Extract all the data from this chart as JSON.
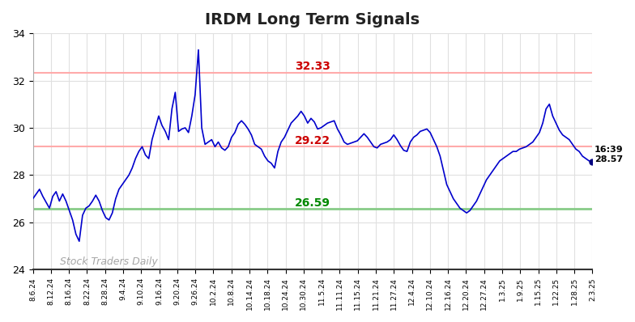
{
  "title": "IRDM Long Term Signals",
  "xlim_dates": [
    "8.6.24",
    "2.3.25"
  ],
  "ylim": [
    24,
    34
  ],
  "yticks": [
    24,
    26,
    28,
    30,
    32,
    34
  ],
  "upper_line": 32.33,
  "lower_line": 26.59,
  "mid_line": 29.22,
  "upper_line_color": "#ffaaaa",
  "lower_line_color": "#88cc88",
  "mid_line_color": "#ffaaaa",
  "upper_label": "32.33",
  "lower_label": "26.59",
  "mid_label": "29.22",
  "upper_label_color": "#cc0000",
  "lower_label_color": "#008800",
  "mid_label_color": "#cc0000",
  "last_price": 28.57,
  "last_time": "16:39",
  "watermark": "Stock Traders Daily",
  "line_color": "#0000cc",
  "dot_color": "#000080",
  "background_color": "#ffffff",
  "grid_color": "#e0e0e0",
  "xtick_labels": [
    "8.6.24",
    "8.12.24",
    "8.16.24",
    "8.22.24",
    "8.28.24",
    "9.4.24",
    "9.10.24",
    "9.16.24",
    "9.20.24",
    "9.26.24",
    "10.2.24",
    "10.8.24",
    "10.14.24",
    "10.18.24",
    "10.24.24",
    "10.30.24",
    "11.5.24",
    "11.11.24",
    "11.15.24",
    "11.21.24",
    "11.27.24",
    "12.4.24",
    "12.10.24",
    "12.16.24",
    "12.20.24",
    "12.27.24",
    "1.3.25",
    "1.9.25",
    "1.15.25",
    "1.22.25",
    "1.28.25",
    "2.3.25"
  ],
  "price_data": [
    27.0,
    27.2,
    27.4,
    27.1,
    26.85,
    26.6,
    27.1,
    27.3,
    26.9,
    27.2,
    26.9,
    26.5,
    26.1,
    25.5,
    25.2,
    26.3,
    26.6,
    26.7,
    26.9,
    27.15,
    26.9,
    26.5,
    26.2,
    26.1,
    26.4,
    27.0,
    27.4,
    27.6,
    27.8,
    28.0,
    28.3,
    28.7,
    29.0,
    29.2,
    28.85,
    28.7,
    29.5,
    30.0,
    30.5,
    30.1,
    29.85,
    29.5,
    30.8,
    31.5,
    29.85,
    29.95,
    30.0,
    29.8,
    30.5,
    31.4,
    33.3,
    30.0,
    29.3,
    29.4,
    29.5,
    29.2,
    29.4,
    29.15,
    29.05,
    29.2,
    29.6,
    29.8,
    30.15,
    30.3,
    30.15,
    29.95,
    29.7,
    29.3,
    29.2,
    29.1,
    28.8,
    28.6,
    28.5,
    28.3,
    29.0,
    29.4,
    29.6,
    29.9,
    30.2,
    30.35,
    30.5,
    30.7,
    30.5,
    30.2,
    30.4,
    30.25,
    29.95,
    30.0,
    30.1,
    30.2,
    30.25,
    30.3,
    29.95,
    29.7,
    29.4,
    29.3,
    29.35,
    29.4,
    29.45,
    29.6,
    29.75,
    29.6,
    29.4,
    29.2,
    29.15,
    29.3,
    29.35,
    29.4,
    29.5,
    29.7,
    29.5,
    29.25,
    29.05,
    29.0,
    29.4,
    29.6,
    29.7,
    29.85,
    29.9,
    29.95,
    29.8,
    29.5,
    29.2,
    28.8,
    28.2,
    27.6,
    27.3,
    27.0,
    26.8,
    26.6,
    26.5,
    26.4,
    26.5,
    26.7,
    26.9,
    27.2,
    27.5,
    27.8,
    28.0,
    28.2,
    28.4,
    28.6,
    28.7,
    28.8,
    28.9,
    29.0,
    29.0,
    29.1,
    29.15,
    29.2,
    29.3,
    29.4,
    29.6,
    29.8,
    30.2,
    30.8,
    31.0,
    30.5,
    30.2,
    29.9,
    29.7,
    29.6,
    29.5,
    29.3,
    29.1,
    29.0,
    28.8,
    28.7,
    28.6,
    28.57
  ]
}
